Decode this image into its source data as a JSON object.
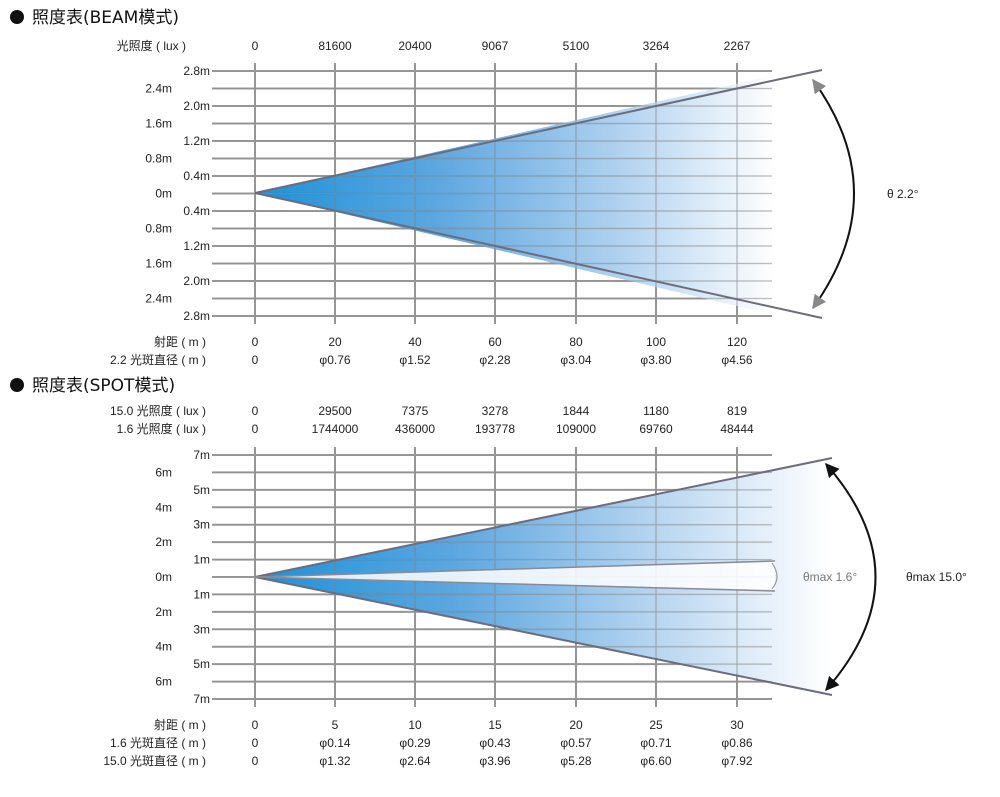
{
  "beam": {
    "title": "照度表(BEAM模式)",
    "lux_label": "光照度 ( lux )",
    "lux_values": [
      "0",
      "81600",
      "20400",
      "9067",
      "5100",
      "3264",
      "2267"
    ],
    "y_labels_left": [
      "2.4m",
      "1.6m",
      "0.8m",
      "0m",
      "0.8m",
      "1.6m",
      "2.4m"
    ],
    "y_labels_right": [
      "2.8m",
      "2.0m",
      "1.2m",
      "0.4m",
      "0.4m",
      "1.2m",
      "2.0m",
      "2.8m"
    ],
    "distance_label": "射距 ( m )",
    "distance_values": [
      "0",
      "20",
      "40",
      "60",
      "80",
      "100",
      "120"
    ],
    "diameter_label": "2.2 光斑直径 ( m )",
    "diameter_values": [
      "0",
      "φ0.76",
      "φ1.52",
      "φ2.28",
      "φ3.04",
      "φ3.80",
      "φ4.56"
    ],
    "angle_label": "θ  2.2°"
  },
  "spot": {
    "title": "照度表(SPOT模式)",
    "lux_label_1": "15.0 光照度 ( lux )",
    "lux_values_1": [
      "0",
      "29500",
      "7375",
      "3278",
      "1844",
      "1180",
      "819"
    ],
    "lux_label_2": "1.6 光照度 ( lux )",
    "lux_values_2": [
      "0",
      "1744000",
      "436000",
      "193778",
      "109000",
      "69760",
      "48444"
    ],
    "y_labels_left": [
      "6m",
      "4m",
      "2m",
      "0m",
      "2m",
      "4m",
      "6m"
    ],
    "y_labels_right": [
      "7m",
      "5m",
      "3m",
      "1m",
      "1m",
      "3m",
      "5m",
      "7m"
    ],
    "distance_label": "射距 ( m )",
    "distance_values": [
      "0",
      "5",
      "10",
      "15",
      "20",
      "25",
      "30"
    ],
    "diameter_label_1": "1.6 光斑直径 ( m )",
    "diameter_values_1": [
      "0",
      "φ0.14",
      "φ0.29",
      "φ0.43",
      "φ0.57",
      "φ0.71",
      "φ0.86"
    ],
    "diameter_label_2": "15.0 光斑直径 ( m )",
    "diameter_values_2": [
      "0",
      "φ1.32",
      "φ2.64",
      "φ3.96",
      "φ5.28",
      "φ6.60",
      "φ7.92"
    ],
    "angle_max_small": "θmax 1.6°",
    "angle_max_large": "θmax 15.0°"
  },
  "colors": {
    "grid": "#9a9a9a",
    "beam_start": "#0a88d4",
    "beam_mid": "#7fb8e6",
    "beam_end": "#ffffff",
    "arrow": "#111111",
    "edge": "#6c6c7c"
  }
}
